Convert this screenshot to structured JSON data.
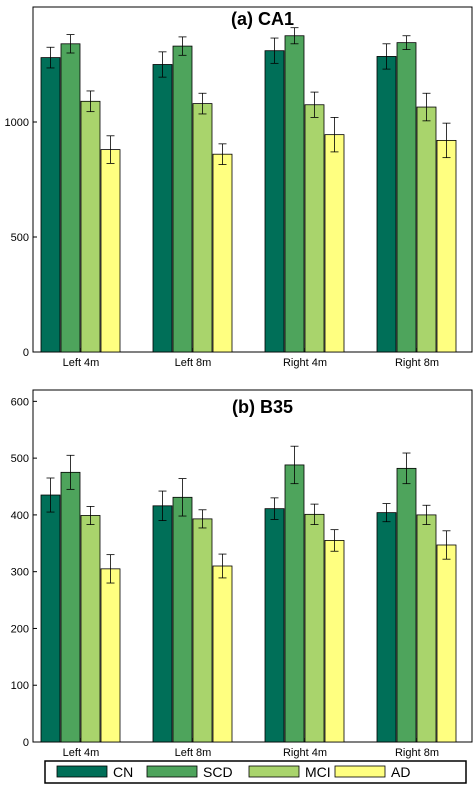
{
  "colors": {
    "CN": "#006f58",
    "SCD": "#4ea45c",
    "MCI": "#a9d46c",
    "AD": "#ffff80"
  },
  "legend": [
    "CN",
    "SCD",
    "MCI",
    "AD"
  ],
  "chart_data": [
    {
      "type": "bar",
      "title": "(a) CA1",
      "categories": [
        "Left 4m",
        "Left 8m",
        "Right 4m",
        "Right 8m"
      ],
      "ylim": [
        0,
        1500
      ],
      "yticks": [
        0,
        500,
        1000
      ],
      "grid": false,
      "series": [
        {
          "name": "CN",
          "values": [
            1280,
            1250,
            1310,
            1285
          ],
          "errors": [
            45,
            55,
            55,
            55
          ]
        },
        {
          "name": "SCD",
          "values": [
            1340,
            1330,
            1375,
            1345
          ],
          "errors": [
            40,
            40,
            35,
            30
          ]
        },
        {
          "name": "MCI",
          "values": [
            1090,
            1080,
            1075,
            1065
          ],
          "errors": [
            45,
            45,
            55,
            60
          ]
        },
        {
          "name": "AD",
          "values": [
            880,
            860,
            945,
            920
          ],
          "errors": [
            60,
            45,
            75,
            75
          ]
        }
      ]
    },
    {
      "type": "bar",
      "title": "(b) B35",
      "categories": [
        "Left 4m",
        "Left 8m",
        "Right 4m",
        "Right 8m"
      ],
      "ylim": [
        0,
        620
      ],
      "yticks": [
        0,
        100,
        200,
        300,
        400,
        500,
        600
      ],
      "grid": false,
      "series": [
        {
          "name": "CN",
          "values": [
            435,
            416,
            411,
            404
          ],
          "errors": [
            30,
            26,
            19,
            16
          ]
        },
        {
          "name": "SCD",
          "values": [
            475,
            431,
            488,
            482
          ],
          "errors": [
            30,
            33,
            33,
            27
          ]
        },
        {
          "name": "MCI",
          "values": [
            399,
            393,
            401,
            400
          ],
          "errors": [
            16,
            16,
            18,
            17
          ]
        },
        {
          "name": "AD",
          "values": [
            305,
            310,
            355,
            347
          ],
          "errors": [
            25,
            21,
            19,
            25
          ]
        }
      ]
    }
  ]
}
